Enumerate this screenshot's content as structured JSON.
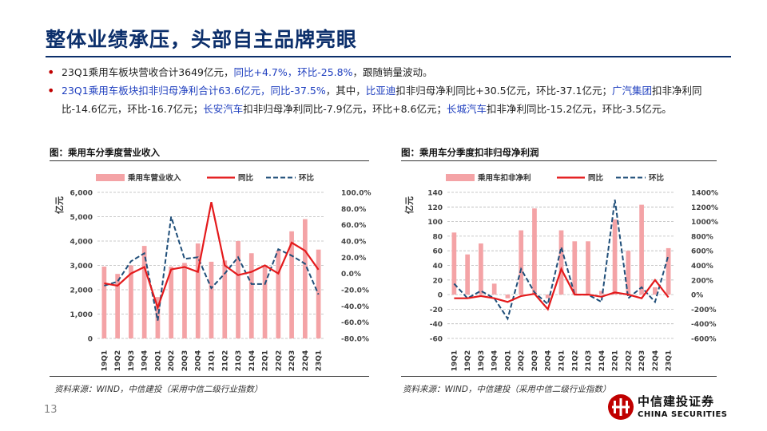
{
  "slide": {
    "title": "整体业绩承压，头部自主品牌亮眼",
    "page_number": "13"
  },
  "bullets": [
    {
      "segments": [
        {
          "text": "23Q1乘用车板块营收合计3649亿元，",
          "hl": false
        },
        {
          "text": "同比+4.7%，环比-25.8%",
          "hl": true
        },
        {
          "text": "，跟随销量波动。",
          "hl": false
        }
      ]
    },
    {
      "segments": [
        {
          "text": "23Q1乘用车板块扣非归母净利合计63.6亿元，同比-37.5%",
          "hl": true
        },
        {
          "text": "，其中，",
          "hl": false
        },
        {
          "text": "比亚迪",
          "hl": true
        },
        {
          "text": "扣非归母净利同比+30.5亿元，环比-37.1亿元；",
          "hl": false
        },
        {
          "text": "广汽集团",
          "hl": true
        },
        {
          "text": "扣非净利同比-14.6亿元，环比-16.7亿元；",
          "hl": false
        },
        {
          "text": "长安汽车",
          "hl": true
        },
        {
          "text": "扣非归母净利同比-7.9亿元，环比+8.6亿元；",
          "hl": false
        },
        {
          "text": "长城汽车",
          "hl": true
        },
        {
          "text": "扣非净利同比-15.2亿元，环比-3.5亿元。",
          "hl": false
        }
      ]
    }
  ],
  "colors": {
    "bar": "#f4a3a6",
    "yoy": "#e41a1c",
    "qoq": "#1f4e79",
    "title": "#0c2f6b",
    "highlight": "#1f3fbf",
    "bullet": "#c00000",
    "logo": "#c00000"
  },
  "chart_data": [
    {
      "type": "bar",
      "caption": "图：乘用车分季度营业收入",
      "source": "资料来源：WIND，中信建投（采用中信二级行业指数）",
      "ylabel": "亿元",
      "categories": [
        "19Q1",
        "19Q2",
        "19Q3",
        "19Q4",
        "20Q1",
        "20Q2",
        "20Q3",
        "20Q4",
        "21Q1",
        "21Q2",
        "21Q3",
        "21Q4",
        "22Q1",
        "22Q2",
        "22Q3",
        "22Q4",
        "23Q1"
      ],
      "left_axis": {
        "min": 0,
        "max": 6000,
        "ticks": [
          0,
          1000,
          2000,
          3000,
          4000,
          5000,
          6000
        ],
        "tick_labels": [
          "0",
          "1,000",
          "2,000",
          "3,000",
          "4,000",
          "5,000",
          "6,000"
        ]
      },
      "right_axis": {
        "min": -80,
        "max": 100,
        "ticks": [
          -80,
          -60,
          -40,
          -20,
          0,
          20,
          40,
          60,
          80,
          100
        ],
        "tick_labels": [
          "-80.0%",
          "-60.0%",
          "-40.0%",
          "-20.0%",
          "0.0%",
          "20.0%",
          "40.0%",
          "60.0%",
          "80.0%",
          "100.0%"
        ]
      },
      "series": [
        {
          "name": "乘用车营业收入",
          "kind": "bar",
          "axis": "left",
          "values": [
            2950,
            2650,
            3000,
            3800,
            1700,
            2950,
            3100,
            3900,
            3150,
            3200,
            4000,
            3500,
            2950,
            3600,
            4400,
            4900,
            3649
          ]
        },
        {
          "name": "同比",
          "kind": "line",
          "axis": "right",
          "values": [
            -12,
            -15,
            0,
            8,
            -42,
            5,
            8,
            2,
            88,
            10,
            -2,
            2,
            10,
            0,
            38,
            28,
            4.7
          ]
        },
        {
          "name": "环比",
          "kind": "dash",
          "axis": "right",
          "values": [
            -15,
            -10,
            15,
            25,
            -58,
            70,
            18,
            20,
            -18,
            0,
            20,
            -13,
            -13,
            30,
            22,
            12,
            -25.8
          ]
        }
      ],
      "legend": "top",
      "grid": "horizontal-dashed"
    },
    {
      "type": "bar",
      "caption": "图：乘用车分季度扣非归母净利润",
      "source": "资料来源：WIND，中信建投（采用中信二级行业指数）",
      "ylabel": "亿元",
      "categories": [
        "19Q1",
        "19Q2",
        "19Q3",
        "19Q4",
        "20Q1",
        "20Q2",
        "20Q3",
        "20Q4",
        "21Q1",
        "21Q2",
        "21Q3",
        "21Q4",
        "22Q1",
        "22Q2",
        "22Q3",
        "22Q4",
        "23Q1"
      ],
      "left_axis": {
        "min": -60,
        "max": 140,
        "ticks": [
          -60,
          -40,
          -20,
          0,
          20,
          40,
          60,
          80,
          100,
          120,
          140
        ],
        "tick_labels": [
          "-60",
          "-40",
          "-20",
          "0",
          "20",
          "40",
          "60",
          "80",
          "100",
          "120",
          "140"
        ]
      },
      "right_axis": {
        "min": -600,
        "max": 1400,
        "ticks": [
          -600,
          -400,
          -200,
          0,
          200,
          400,
          600,
          800,
          1000,
          1200,
          1400
        ],
        "tick_labels": [
          "-600%",
          "-400%",
          "-200%",
          "0%",
          "200%",
          "400%",
          "600%",
          "800%",
          "1000%",
          "1200%",
          "1400%"
        ]
      },
      "series": [
        {
          "name": "乘用车扣非净利",
          "kind": "bar",
          "axis": "left",
          "values": [
            85,
            55,
            70,
            15,
            -5,
            88,
            118,
            -5,
            88,
            73,
            73,
            5,
            103,
            60,
            123,
            10,
            63.6
          ]
        },
        {
          "name": "同比",
          "kind": "line",
          "axis": "right",
          "values": [
            -50,
            -50,
            -20,
            -50,
            -100,
            -20,
            10,
            -200,
            350,
            0,
            0,
            -30,
            30,
            0,
            -50,
            200,
            -37.5
          ]
        },
        {
          "name": "环比",
          "kind": "dash",
          "axis": "right",
          "values": [
            150,
            -50,
            50,
            -50,
            -330,
            350,
            30,
            -130,
            650,
            0,
            0,
            -100,
            1300,
            -50,
            100,
            -100,
            540
          ]
        }
      ],
      "legend": "top",
      "grid": "horizontal-dashed"
    }
  ],
  "logo": {
    "name_cn": "中信建投证券",
    "name_en": "CHINA SECURITIES"
  }
}
